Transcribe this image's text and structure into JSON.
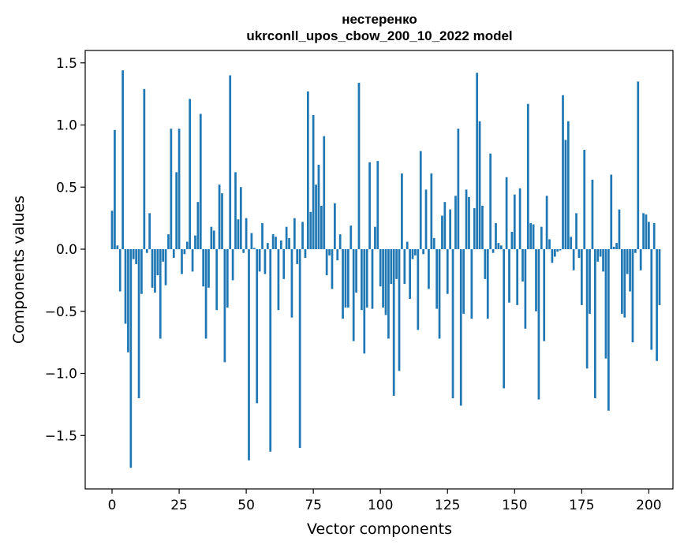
{
  "chart_data": {
    "type": "bar",
    "title": "нестеренко",
    "subtitle": "ukrconll_upos_cbow_200_10_2022 model",
    "xlabel": "Vector components",
    "ylabel": "Components values",
    "xlim": [
      -10,
      209
    ],
    "ylim": [
      -1.93,
      1.6
    ],
    "xticks": [
      0,
      25,
      50,
      75,
      100,
      125,
      150,
      175,
      200
    ],
    "xtick_labels": [
      "0",
      "25",
      "50",
      "75",
      "100",
      "125",
      "150",
      "175",
      "200"
    ],
    "yticks": [
      1.5,
      1.0,
      0.5,
      0.0,
      -0.5,
      -1.0,
      -1.5
    ],
    "ytick_labels": [
      "1.5",
      "1.0",
      "0.5",
      "0.0",
      "−0.5",
      "−1.0",
      "−1.5"
    ],
    "bar_color": "#1f77b4",
    "values": [
      0.31,
      0.96,
      0.03,
      -0.34,
      1.44,
      -0.6,
      -0.83,
      -1.76,
      -0.08,
      -0.12,
      -1.2,
      -0.36,
      1.29,
      -0.03,
      0.29,
      -0.31,
      -0.35,
      -0.21,
      -0.72,
      -0.1,
      -0.29,
      0.12,
      0.97,
      -0.07,
      0.62,
      0.97,
      -0.2,
      -0.04,
      0.06,
      1.21,
      -0.18,
      0.11,
      0.38,
      1.09,
      -0.3,
      -0.72,
      -0.31,
      0.18,
      0.15,
      -0.49,
      0.52,
      0.45,
      -0.91,
      -0.47,
      1.4,
      -0.25,
      0.62,
      0.24,
      0.5,
      -0.03,
      0.25,
      -1.7,
      0.13,
      0.01,
      -1.24,
      -0.18,
      0.21,
      -0.2,
      0.05,
      -1.63,
      0.12,
      0.1,
      -0.49,
      0.07,
      -0.24,
      0.18,
      0.09,
      -0.55,
      0.25,
      -0.12,
      -1.6,
      0.22,
      -0.07,
      1.27,
      0.3,
      1.08,
      0.52,
      0.68,
      0.35,
      0.91,
      -0.21,
      -0.05,
      -0.32,
      0.37,
      -0.09,
      0.12,
      -0.56,
      -0.47,
      -0.47,
      0.19,
      -0.74,
      -0.35,
      1.34,
      -0.49,
      -0.84,
      -0.47,
      0.7,
      -0.48,
      0.18,
      0.71,
      -0.3,
      -0.47,
      -0.53,
      -0.72,
      -0.28,
      -1.18,
      -0.24,
      -0.98,
      0.61,
      -0.28,
      0.06,
      -0.4,
      -0.08,
      -0.05,
      -0.65,
      0.79,
      -0.04,
      0.48,
      -0.32,
      0.61,
      0.09,
      -0.48,
      -0.72,
      0.27,
      0.38,
      -0.36,
      0.32,
      -1.2,
      0.43,
      0.97,
      -1.26,
      -0.52,
      0.48,
      0.42,
      -0.56,
      0.33,
      1.42,
      1.03,
      0.35,
      -0.24,
      -0.56,
      0.77,
      -0.03,
      0.21,
      0.05,
      0.03,
      -1.12,
      0.58,
      -0.43,
      0.14,
      0.44,
      -0.45,
      0.49,
      -0.26,
      -0.64,
      1.17,
      0.21,
      0.2,
      -0.5,
      -1.21,
      0.18,
      -0.74,
      0.43,
      0.08,
      -0.11,
      -0.06,
      -0.02,
      -0.01,
      1.24,
      0.88,
      1.03,
      0.1,
      -0.17,
      0.29,
      -0.07,
      -0.45,
      0.8,
      -0.96,
      -0.52,
      0.56,
      -1.2,
      -0.1,
      -0.06,
      -0.18,
      -0.88,
      -1.3,
      0.6,
      0.02,
      0.05,
      0.32,
      -0.52,
      -0.55,
      -0.2,
      -0.34,
      -0.75,
      -0.03,
      1.35,
      -0.17,
      0.29,
      0.28,
      0.22,
      -0.81,
      0.21,
      -0.9,
      -0.45
    ]
  }
}
